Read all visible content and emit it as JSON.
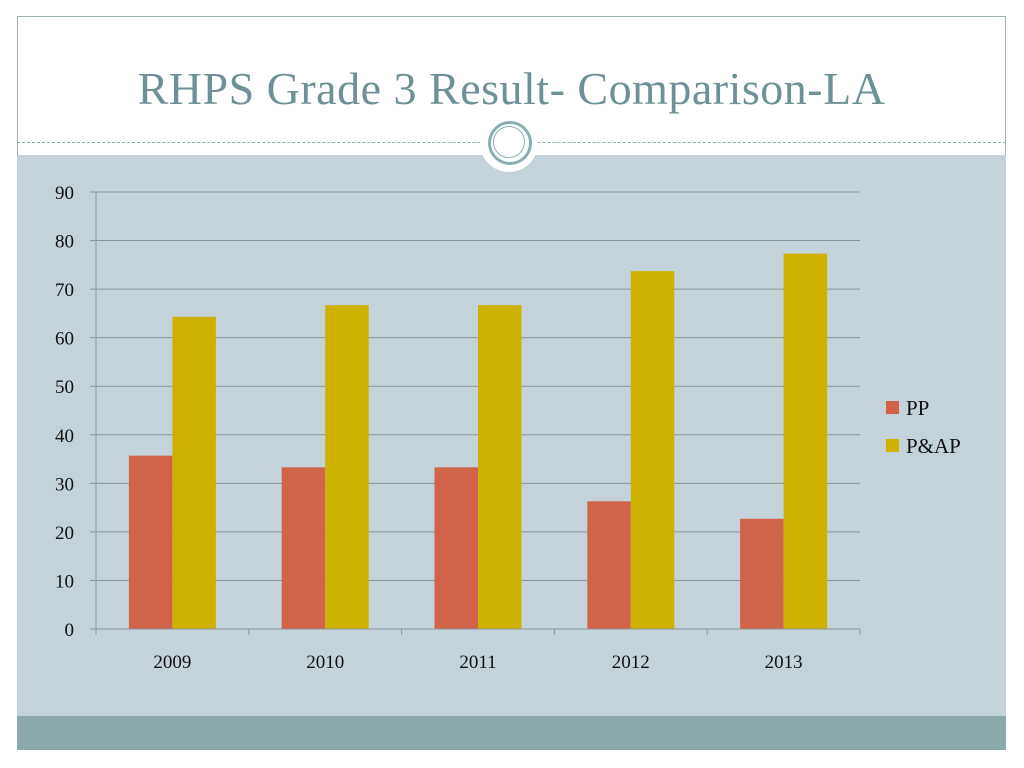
{
  "slide": {
    "title": "RHPS Grade 3 Result- Comparison-LA"
  },
  "colors": {
    "pp": "#d0634a",
    "pap": "#cdb200",
    "grid": "#8a9599",
    "plot_bg": "#c4d2d9",
    "title": "#6e9197"
  },
  "chart_data": {
    "type": "bar",
    "title": "",
    "xlabel": "",
    "ylabel": "",
    "categories": [
      "2009",
      "2010",
      "2011",
      "2012",
      "2013"
    ],
    "series": [
      {
        "name": "PP",
        "values": [
          35.7,
          33.3,
          33.3,
          26.3,
          22.7
        ],
        "color": "#d0634a"
      },
      {
        "name": "P&AP",
        "values": [
          64.3,
          66.7,
          66.7,
          73.7,
          77.3
        ],
        "color": "#cdb200"
      }
    ],
    "ylim": [
      0,
      90
    ],
    "yticks": [
      0,
      10,
      20,
      30,
      40,
      50,
      60,
      70,
      80,
      90
    ],
    "grid": true,
    "legend_position": "right"
  }
}
